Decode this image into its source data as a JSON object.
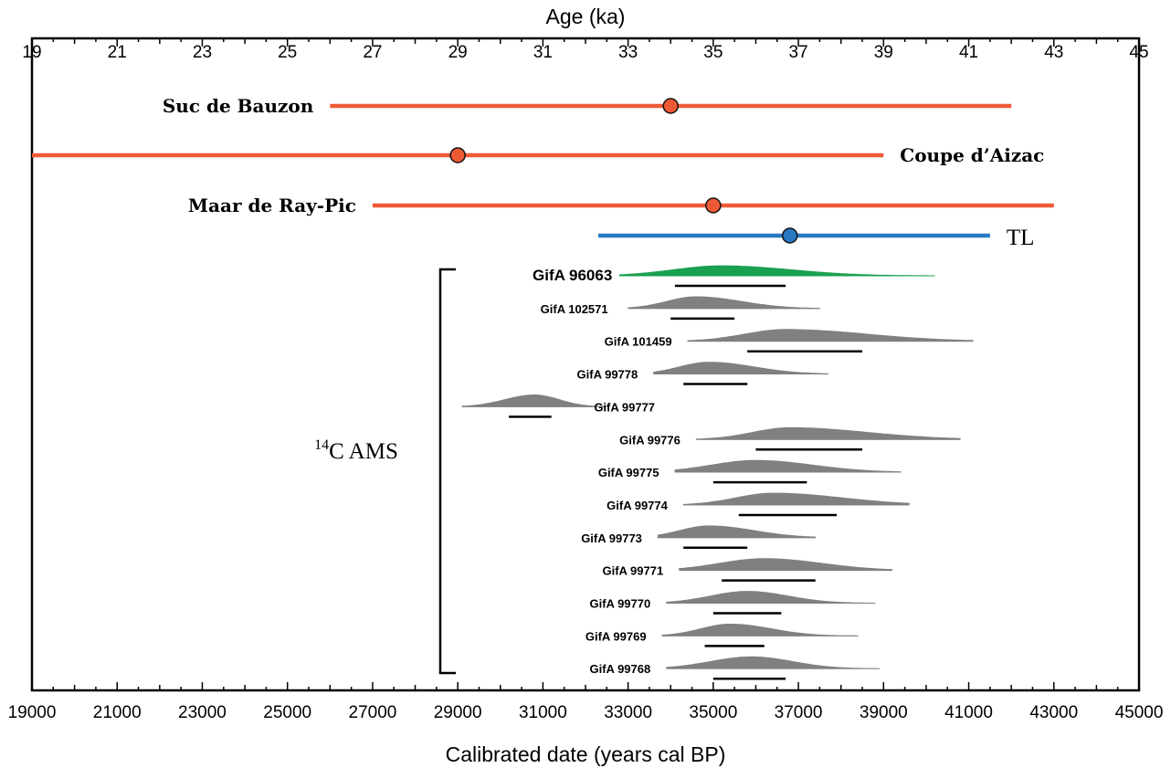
{
  "chart_data": {
    "type": "range",
    "top_axis": {
      "label": "Age (ka)",
      "range": [
        19,
        45
      ],
      "ticks": [
        "19",
        "21",
        "23",
        "25",
        "27",
        "29",
        "31",
        "33",
        "35",
        "37",
        "39",
        "41",
        "43",
        "45"
      ]
    },
    "bottom_axis": {
      "label": "Calibrated date (years cal BP)",
      "range": [
        19000,
        45000
      ],
      "ticks": [
        "19000",
        "21000",
        "23000",
        "25000",
        "27000",
        "29000",
        "31000",
        "33000",
        "35000",
        "37000",
        "39000",
        "41000",
        "43000",
        "45000"
      ]
    },
    "dated_sites": [
      {
        "name": "Suc de Bauzon",
        "point": 34,
        "range": [
          26,
          42
        ],
        "color": "#ee5a36",
        "label_side": "left"
      },
      {
        "name": "Coupe d’Aizac",
        "point": 29,
        "range": [
          19,
          39
        ],
        "color": "#ee5a36",
        "label_side": "right"
      },
      {
        "name": "Maar de Ray-Pic",
        "point": 35,
        "range": [
          27,
          43
        ],
        "color": "#ee5a36",
        "label_side": "left"
      },
      {
        "name": "TL",
        "point": 36.8,
        "range": [
          32.3,
          41.5
        ],
        "color": "#2878c2",
        "label_side": "right"
      }
    ],
    "ams_group_label": {
      "superscript": "14",
      "text": "C AMS"
    },
    "samples": [
      {
        "name": "GifA 96063",
        "highlight": true,
        "color": "#1aa050",
        "span": [
          32.8,
          40.2
        ],
        "peak": 35.2,
        "range": [
          34.1,
          36.7
        ],
        "label_x": 32.8
      },
      {
        "name": "GifA 102571",
        "span": [
          33.0,
          37.5
        ],
        "peak": 34.6,
        "range": [
          34.0,
          35.5
        ],
        "label_x": 32.7
      },
      {
        "name": "GifA 101459",
        "span": [
          34.4,
          41.1
        ],
        "peak": 36.7,
        "range": [
          35.8,
          38.5
        ],
        "label_x": 34.2
      },
      {
        "name": "GifA 99778",
        "span": [
          33.6,
          37.7
        ],
        "peak": 34.9,
        "range": [
          34.3,
          35.8
        ],
        "label_x": 33.4
      },
      {
        "name": "GifA 99777",
        "span": [
          29.1,
          32.5
        ],
        "peak": 30.8,
        "range": [
          30.2,
          31.2
        ],
        "label_x": 32.2,
        "label_anchor": "start"
      },
      {
        "name": "GifA 99776",
        "span": [
          34.6,
          40.8
        ],
        "peak": 36.8,
        "range": [
          36.0,
          38.5
        ],
        "label_x": 34.4
      },
      {
        "name": "GifA 99775",
        "span": [
          34.1,
          39.4
        ],
        "peak": 36.0,
        "range": [
          35.0,
          37.2
        ],
        "label_x": 33.9
      },
      {
        "name": "GifA 99774",
        "span": [
          34.3,
          39.6
        ],
        "peak": 36.4,
        "range": [
          35.6,
          37.9
        ],
        "label_x": 34.1
      },
      {
        "name": "GifA 99773",
        "span": [
          33.7,
          37.4
        ],
        "peak": 34.9,
        "range": [
          34.3,
          35.8
        ],
        "label_x": 33.5
      },
      {
        "name": "GifA 99771",
        "span": [
          34.2,
          39.2
        ],
        "peak": 36.2,
        "range": [
          35.2,
          37.4
        ],
        "label_x": 34.0
      },
      {
        "name": "GifA 99770",
        "span": [
          33.9,
          38.8
        ],
        "peak": 35.8,
        "range": [
          35.0,
          36.6
        ],
        "label_x": 33.7
      },
      {
        "name": "GifA 99769",
        "span": [
          33.8,
          38.4
        ],
        "peak": 35.4,
        "range": [
          34.8,
          36.2
        ],
        "label_x": 33.6
      },
      {
        "name": "GifA 99768",
        "span": [
          33.9,
          38.9
        ],
        "peak": 35.9,
        "range": [
          35.0,
          36.7
        ],
        "label_x": 33.7
      }
    ]
  }
}
